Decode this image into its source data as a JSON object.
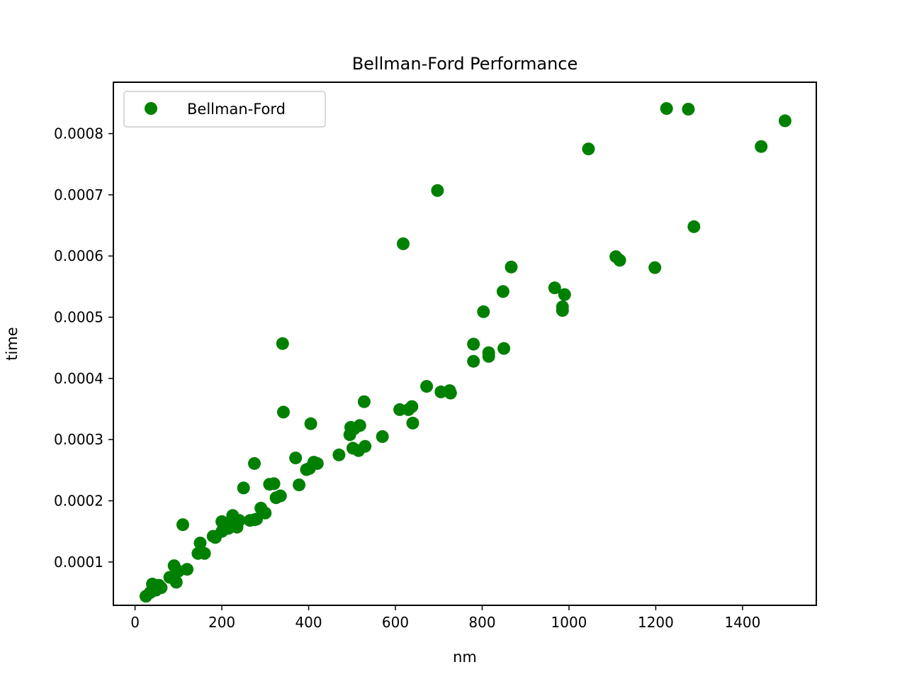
{
  "chart_data": {
    "type": "scatter",
    "title": "Bellman-Ford Performance",
    "xlabel": "nm",
    "ylabel": "time",
    "xlim": [
      -50,
      1570
    ],
    "ylim": [
      2.92e-05,
      0.000884
    ],
    "x_ticks": [
      0,
      200,
      400,
      600,
      800,
      1000,
      1200,
      1400
    ],
    "x_tick_labels": [
      "0",
      "200",
      "400",
      "600",
      "800",
      "1000",
      "1200",
      "1400"
    ],
    "y_ticks": [
      0.0001,
      0.0002,
      0.0003,
      0.0004,
      0.0005,
      0.0006,
      0.0007,
      0.0008
    ],
    "y_tick_labels": [
      "0.0001",
      "0.0002",
      "0.0003",
      "0.0004",
      "0.0005",
      "0.0006",
      "0.0007",
      "0.0008"
    ],
    "grid": false,
    "legend_position": "top-left",
    "series": [
      {
        "name": "Bellman-Ford",
        "color": "#008000",
        "marker": "circle",
        "points": [
          [
            25,
            4.4e-05
          ],
          [
            35,
            5e-05
          ],
          [
            40,
            6.4e-05
          ],
          [
            48,
            5.4e-05
          ],
          [
            55,
            6.2e-05
          ],
          [
            60,
            5.8e-05
          ],
          [
            80,
            7.5e-05
          ],
          [
            90,
            9.4e-05
          ],
          [
            95,
            6.7e-05
          ],
          [
            100,
            8.5e-05
          ],
          [
            110,
            0.000161
          ],
          [
            120,
            8.8e-05
          ],
          [
            145,
            0.000114
          ],
          [
            150,
            0.000131
          ],
          [
            160,
            0.000114
          ],
          [
            180,
            0.000142
          ],
          [
            185,
            0.00014
          ],
          [
            200,
            0.00015
          ],
          [
            200,
            0.000166
          ],
          [
            205,
            0.00016
          ],
          [
            215,
            0.000155
          ],
          [
            220,
            0.000162
          ],
          [
            225,
            0.000176
          ],
          [
            228,
            0.000165
          ],
          [
            235,
            0.000157
          ],
          [
            240,
            0.000168
          ],
          [
            250,
            0.000221
          ],
          [
            265,
            0.000168
          ],
          [
            275,
            0.000169
          ],
          [
            275,
            0.000261
          ],
          [
            280,
            0.00017
          ],
          [
            290,
            0.000188
          ],
          [
            300,
            0.00018
          ],
          [
            310,
            0.000227
          ],
          [
            320,
            0.000228
          ],
          [
            325,
            0.000205
          ],
          [
            335,
            0.000208
          ],
          [
            340,
            0.000457
          ],
          [
            342,
            0.000345
          ],
          [
            370,
            0.00027
          ],
          [
            378,
            0.000226
          ],
          [
            395,
            0.000251
          ],
          [
            402,
            0.000253
          ],
          [
            405,
            0.000326
          ],
          [
            412,
            0.000263
          ],
          [
            420,
            0.000261
          ],
          [
            470,
            0.000275
          ],
          [
            495,
            0.000308
          ],
          [
            497,
            0.00032
          ],
          [
            502,
            0.000286
          ],
          [
            505,
            0.000318
          ],
          [
            515,
            0.000282
          ],
          [
            518,
            0.000323
          ],
          [
            528,
            0.000362
          ],
          [
            530,
            0.000289
          ],
          [
            570,
            0.000305
          ],
          [
            610,
            0.000349
          ],
          [
            618,
            0.00062
          ],
          [
            630,
            0.000349
          ],
          [
            638,
            0.000354
          ],
          [
            640,
            0.000327
          ],
          [
            672,
            0.000387
          ],
          [
            697,
            0.000707
          ],
          [
            705,
            0.000378
          ],
          [
            725,
            0.00038
          ],
          [
            727,
            0.000376
          ],
          [
            780,
            0.000456
          ],
          [
            780,
            0.000428
          ],
          [
            803,
            0.000509
          ],
          [
            815,
            0.000442
          ],
          [
            815,
            0.000436
          ],
          [
            848,
            0.000542
          ],
          [
            850,
            0.000449
          ],
          [
            867,
            0.000582
          ],
          [
            967,
            0.000548
          ],
          [
            985,
            0.000517
          ],
          [
            985,
            0.000511
          ],
          [
            990,
            0.000537
          ],
          [
            1045,
            0.000775
          ],
          [
            1108,
            0.000599
          ],
          [
            1117,
            0.000593
          ],
          [
            1198,
            0.000581
          ],
          [
            1225,
            0.000841
          ],
          [
            1275,
            0.00084
          ],
          [
            1288,
            0.000648
          ],
          [
            1443,
            0.000779
          ],
          [
            1498,
            0.000821
          ]
        ]
      }
    ]
  }
}
